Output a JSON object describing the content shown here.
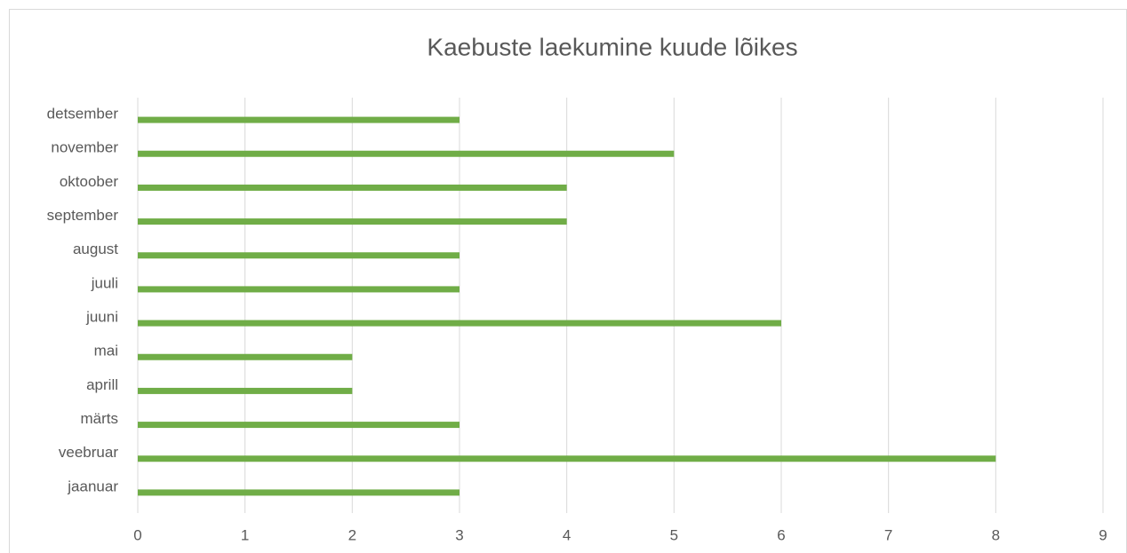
{
  "chart_data": {
    "type": "bar",
    "orientation": "horizontal",
    "title": "Kaebuste laekumine kuude lõikes",
    "categories": [
      "jaanuar",
      "veebruar",
      "märts",
      "aprill",
      "mai",
      "juuni",
      "juuli",
      "august",
      "september",
      "oktoober",
      "november",
      "detsember"
    ],
    "values": [
      3,
      8,
      3,
      2,
      2,
      6,
      3,
      3,
      4,
      4,
      5,
      3
    ],
    "color": "#70ad47",
    "xlim": [
      0,
      9
    ],
    "xticks": [
      0,
      1,
      2,
      3,
      4,
      5,
      6,
      7,
      8,
      9
    ],
    "grid": true
  }
}
